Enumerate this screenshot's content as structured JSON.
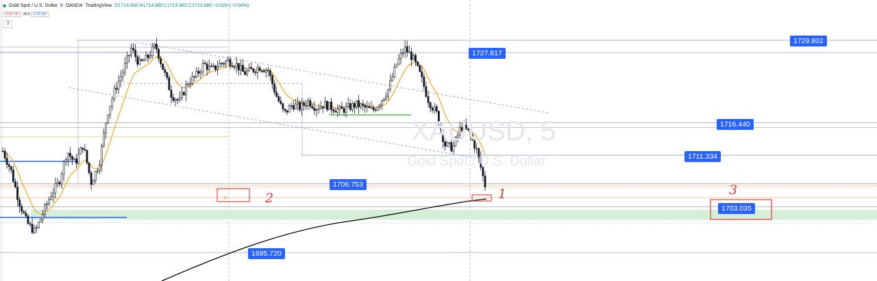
{
  "header": {
    "symbol": "Gold Spot / U.S. Dollar",
    "interval": "5",
    "broker": "OANDA",
    "platform": "TradingView",
    "ohlc": "O1714.600 H1714.880 L1713.945 C1713.980 −0.620 (−0.04%)",
    "sell_price": "1726.747",
    "spread": "25.0",
    "buy_price": "1726.997",
    "collapse_label": "3"
  },
  "watermark": {
    "ticker": "XAUUSD, 5",
    "name": "Gold Spot / U.S. Dollar"
  },
  "price_labels": [
    "1729.802",
    "1727.817",
    "1716.440",
    "1711.334",
    "1706.753",
    "1703.035",
    "1695.720"
  ],
  "annotations": {
    "one": "1",
    "two": "2",
    "three": "3",
    "s1": "S1"
  },
  "colors": {
    "up": "#131722",
    "down": "#131722",
    "ema": "#f5a623",
    "long_ma": "#000000",
    "zone": "#d6eed6",
    "level_line": "#2962ff",
    "mark": "#e53935"
  },
  "chart_data": {
    "type": "candlestick",
    "symbol": "XAUUSD",
    "interval": "5",
    "ylim": [
      1692,
      1732
    ],
    "levels": [
      1729.802,
      1727.817,
      1716.44,
      1711.334,
      1706.753,
      1703.035,
      1695.72
    ],
    "support_zone": [
      1701.0,
      1702.6
    ],
    "price_path": [
      1712,
      1709,
      1704,
      1700.5,
      1699,
      1702,
      1705,
      1707,
      1712,
      1710,
      1713,
      1707,
      1710,
      1718,
      1722,
      1725,
      1728.5,
      1726,
      1727,
      1729,
      1725,
      1721,
      1720,
      1723,
      1724,
      1726,
      1725,
      1726,
      1726.5,
      1726,
      1724.5,
      1725,
      1725.5,
      1725,
      1721,
      1718,
      1719.5,
      1719,
      1720,
      1719,
      1719.5,
      1719,
      1718.5,
      1719,
      1719.5,
      1719,
      1718.5,
      1720,
      1722,
      1726,
      1728.5,
      1727,
      1724,
      1720,
      1718,
      1713,
      1712.5,
      1716,
      1715,
      1712,
      1706.5
    ]
  }
}
